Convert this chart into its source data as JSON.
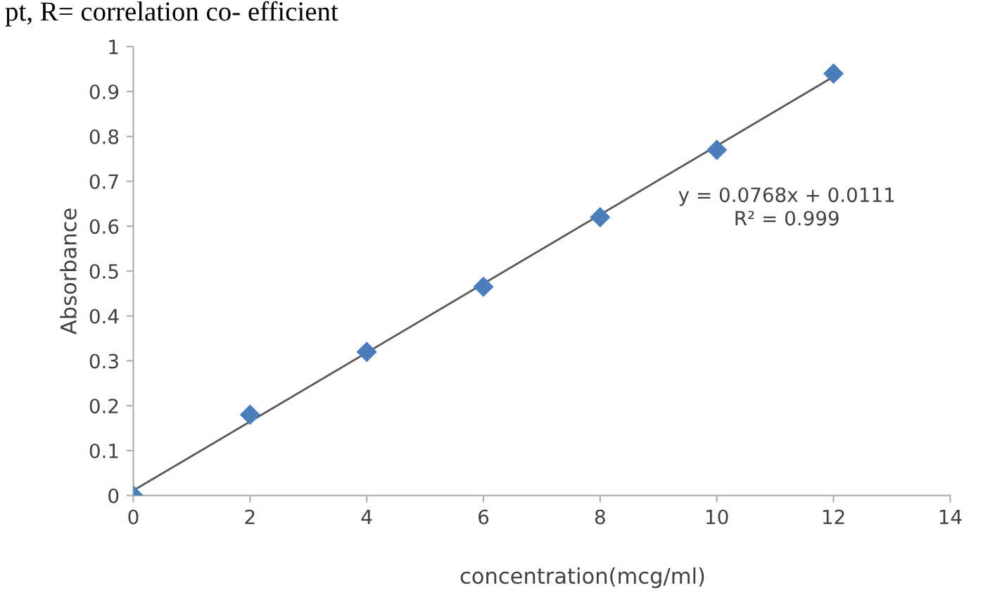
{
  "chart_data": {
    "type": "scatter",
    "xlabel": "concentration(mcg/ml)",
    "ylabel": "Absorbance",
    "annotations": [
      "pt, R= correlation co- efficient",
      "y = 0.0768x + 0.0111\nR² = 0.999"
    ],
    "series": [
      {
        "color": "#4a7ebb",
        "marker": "diamond",
        "x": [
          0,
          2,
          4,
          6,
          8,
          10,
          12
        ],
        "values": [
          0,
          0.18,
          0.32,
          0.465,
          0.62,
          0.77,
          0.94
        ]
      },
      {
        "type": "line",
        "color": "#595959",
        "marker": "none",
        "x": [
          0,
          12
        ],
        "values": [
          0.011,
          0.933
        ]
      }
    ],
    "xlim": [
      0,
      14
    ],
    "xticks": [
      0,
      2,
      4,
      6,
      8,
      10,
      12,
      14
    ],
    "ylim": [
      0,
      1
    ],
    "yticks": [
      0,
      0.1,
      0.2,
      0.3,
      0.4,
      0.5,
      0.6,
      0.7,
      0.8,
      0.9,
      1
    ],
    "grid": false,
    "legend": false
  }
}
